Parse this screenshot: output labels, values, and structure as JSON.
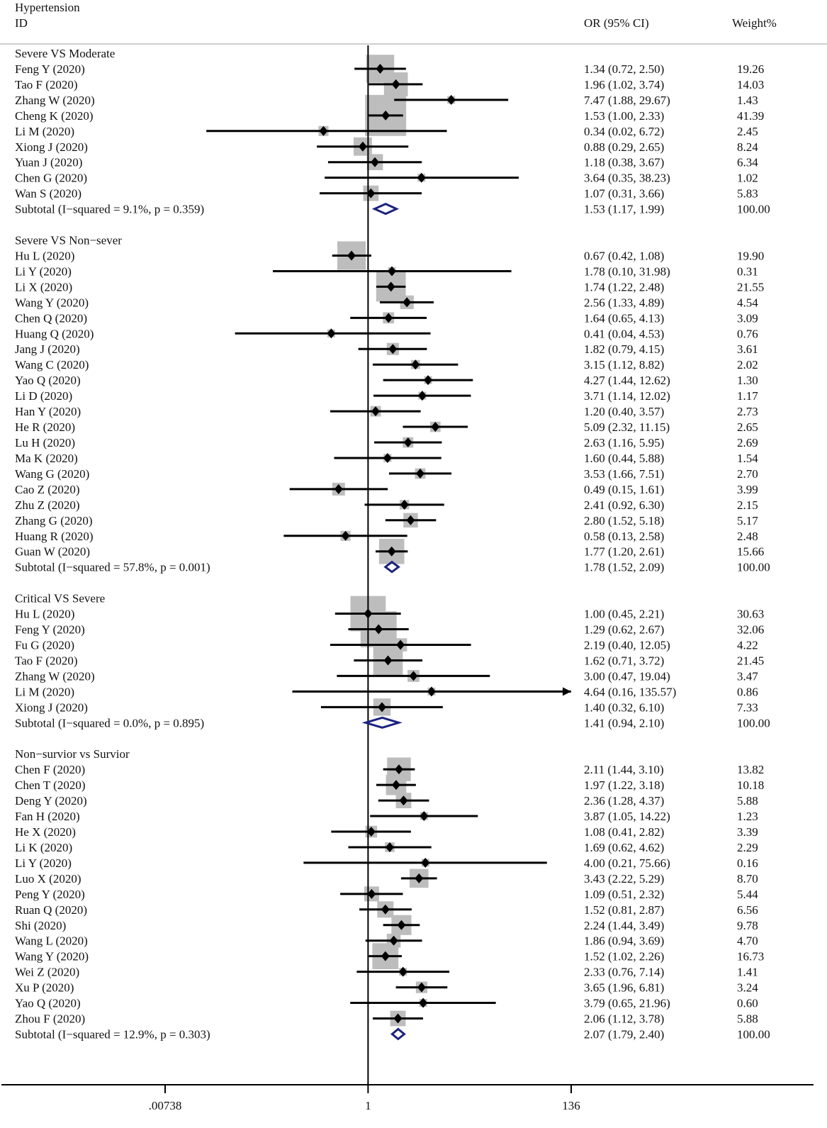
{
  "chart_data": {
    "type": "forest",
    "title": "Hypertension",
    "columns": {
      "id": "ID",
      "estimate": "OR (95% CI)",
      "weight": "Weight%"
    },
    "x_scale": "log",
    "xlim": [
      0.00738,
      136
    ],
    "x_ticks": [
      0.00738,
      1,
      136
    ],
    "x_tick_labels": [
      ".00738",
      "1",
      "136"
    ],
    "null_line": 1,
    "colors": {
      "box": "#bdbdbd",
      "point": "#000000",
      "ci": "#000000",
      "summary": "#1a237e",
      "text": "#111111"
    },
    "groups": [
      {
        "name": "Severe VS Moderate",
        "studies": [
          {
            "label": "Feng Y  (2020)",
            "or": 1.34,
            "lo": 0.72,
            "hi": 2.5,
            "text": "1.34 (0.72, 2.50)",
            "weight": "19.26"
          },
          {
            "label": "Tao F  (2020)",
            "or": 1.96,
            "lo": 1.02,
            "hi": 3.74,
            "text": "1.96 (1.02, 3.74)",
            "weight": "14.03"
          },
          {
            "label": "Zhang W  (2020)",
            "or": 7.47,
            "lo": 1.88,
            "hi": 29.67,
            "text": "7.47 (1.88, 29.67)",
            "weight": "1.43"
          },
          {
            "label": "Cheng K  (2020)",
            "or": 1.53,
            "lo": 1.0,
            "hi": 2.33,
            "text": "1.53 (1.00, 2.33)",
            "weight": "41.39"
          },
          {
            "label": "Li M  (2020)",
            "or": 0.34,
            "lo": 0.02,
            "hi": 6.72,
            "text": "0.34 (0.02, 6.72)",
            "weight": "2.45"
          },
          {
            "label": "Xiong J  (2020)",
            "or": 0.88,
            "lo": 0.29,
            "hi": 2.65,
            "text": "0.88 (0.29, 2.65)",
            "weight": "8.24"
          },
          {
            "label": "Yuan J  (2020)",
            "or": 1.18,
            "lo": 0.38,
            "hi": 3.67,
            "text": "1.18 (0.38, 3.67)",
            "weight": "6.34"
          },
          {
            "label": "Chen G  (2020)",
            "or": 3.64,
            "lo": 0.35,
            "hi": 38.23,
            "text": "3.64 (0.35, 38.23)",
            "weight": "1.02"
          },
          {
            "label": "Wan S  (2020)",
            "or": 1.07,
            "lo": 0.31,
            "hi": 3.66,
            "text": "1.07 (0.31, 3.66)",
            "weight": "5.83"
          }
        ],
        "subtotal": {
          "label": "Subtotal  (I−squared = 9.1%, p = 0.359)",
          "or": 1.53,
          "lo": 1.17,
          "hi": 1.99,
          "text": "1.53 (1.17, 1.99)",
          "weight": "100.00"
        }
      },
      {
        "name": "Severe VS Non−sever",
        "studies": [
          {
            "label": "Hu L  (2020)",
            "or": 0.67,
            "lo": 0.42,
            "hi": 1.08,
            "text": "0.67 (0.42, 1.08)",
            "weight": "19.90"
          },
          {
            "label": "Li Y  (2020)",
            "or": 1.78,
            "lo": 0.1,
            "hi": 31.98,
            "text": "1.78 (0.10, 31.98)",
            "weight": "0.31"
          },
          {
            "label": "Li X  (2020)",
            "or": 1.74,
            "lo": 1.22,
            "hi": 2.48,
            "text": "1.74 (1.22, 2.48)",
            "weight": "21.55"
          },
          {
            "label": "Wang Y  (2020)",
            "or": 2.56,
            "lo": 1.33,
            "hi": 4.89,
            "text": "2.56 (1.33, 4.89)",
            "weight": "4.54"
          },
          {
            "label": "Chen Q  (2020)",
            "or": 1.64,
            "lo": 0.65,
            "hi": 4.13,
            "text": "1.64 (0.65, 4.13)",
            "weight": "3.09"
          },
          {
            "label": "Huang Q  (2020)",
            "or": 0.41,
            "lo": 0.04,
            "hi": 4.53,
            "text": "0.41 (0.04, 4.53)",
            "weight": "0.76"
          },
          {
            "label": "Jang J  (2020)",
            "or": 1.82,
            "lo": 0.79,
            "hi": 4.15,
            "text": "1.82 (0.79, 4.15)",
            "weight": "3.61"
          },
          {
            "label": "Wang C  (2020)",
            "or": 3.15,
            "lo": 1.12,
            "hi": 8.82,
            "text": "3.15 (1.12, 8.82)",
            "weight": "2.02"
          },
          {
            "label": "Yao Q  (2020)",
            "or": 4.27,
            "lo": 1.44,
            "hi": 12.62,
            "text": "4.27 (1.44, 12.62)",
            "weight": "1.30"
          },
          {
            "label": "Li D  (2020)",
            "or": 3.71,
            "lo": 1.14,
            "hi": 12.02,
            "text": "3.71 (1.14, 12.02)",
            "weight": "1.17"
          },
          {
            "label": "Han Y  (2020)",
            "or": 1.2,
            "lo": 0.4,
            "hi": 3.57,
            "text": "1.20 (0.40, 3.57)",
            "weight": "2.73"
          },
          {
            "label": "He R  (2020)",
            "or": 5.09,
            "lo": 2.32,
            "hi": 11.15,
            "text": "5.09 (2.32, 11.15)",
            "weight": "2.65"
          },
          {
            "label": "Lu H  (2020)",
            "or": 2.63,
            "lo": 1.16,
            "hi": 5.95,
            "text": "2.63 (1.16, 5.95)",
            "weight": "2.69"
          },
          {
            "label": "Ma K  (2020)",
            "or": 1.6,
            "lo": 0.44,
            "hi": 5.88,
            "text": "1.60 (0.44, 5.88)",
            "weight": "1.54"
          },
          {
            "label": "Wang G  (2020)",
            "or": 3.53,
            "lo": 1.66,
            "hi": 7.51,
            "text": "3.53 (1.66, 7.51)",
            "weight": "2.70"
          },
          {
            "label": "Cao Z  (2020)",
            "or": 0.49,
            "lo": 0.15,
            "hi": 1.61,
            "text": "0.49 (0.15, 1.61)",
            "weight": "3.99"
          },
          {
            "label": "Zhu Z  (2020)",
            "or": 2.41,
            "lo": 0.92,
            "hi": 6.3,
            "text": "2.41 (0.92, 6.30)",
            "weight": "2.15"
          },
          {
            "label": "Zhang G  (2020)",
            "or": 2.8,
            "lo": 1.52,
            "hi": 5.18,
            "text": "2.80 (1.52, 5.18)",
            "weight": "5.17"
          },
          {
            "label": "Huang R  (2020)",
            "or": 0.58,
            "lo": 0.13,
            "hi": 2.58,
            "text": "0.58 (0.13, 2.58)",
            "weight": "2.48"
          },
          {
            "label": "Guan W  (2020)",
            "or": 1.77,
            "lo": 1.2,
            "hi": 2.61,
            "text": "1.77 (1.20, 2.61)",
            "weight": "15.66"
          }
        ],
        "subtotal": {
          "label": "Subtotal  (I−squared = 57.8%, p = 0.001)",
          "or": 1.78,
          "lo": 1.52,
          "hi": 2.09,
          "text": "1.78 (1.52, 2.09)",
          "weight": "100.00"
        }
      },
      {
        "name": "Critical VS Severe",
        "studies": [
          {
            "label": "Hu L  (2020)",
            "or": 1.0,
            "lo": 0.45,
            "hi": 2.21,
            "text": "1.00 (0.45, 2.21)",
            "weight": "30.63"
          },
          {
            "label": "Feng Y  (2020)",
            "or": 1.29,
            "lo": 0.62,
            "hi": 2.67,
            "text": "1.29 (0.62, 2.67)",
            "weight": "32.06"
          },
          {
            "label": "Fu G  (2020)",
            "or": 2.19,
            "lo": 0.4,
            "hi": 12.05,
            "text": "2.19 (0.40, 12.05)",
            "weight": "4.22"
          },
          {
            "label": "Tao F  (2020)",
            "or": 1.62,
            "lo": 0.71,
            "hi": 3.72,
            "text": "1.62 (0.71, 3.72)",
            "weight": "21.45"
          },
          {
            "label": "Zhang W  (2020)",
            "or": 3.0,
            "lo": 0.47,
            "hi": 19.04,
            "text": "3.00 (0.47, 19.04)",
            "weight": "3.47"
          },
          {
            "label": "Li M  (2020)",
            "or": 4.64,
            "lo": 0.16,
            "hi": 135.57,
            "text": "4.64 (0.16, 135.57)",
            "weight": "0.86"
          },
          {
            "label": "Xiong J  (2020)",
            "or": 1.4,
            "lo": 0.32,
            "hi": 6.1,
            "text": "1.40 (0.32, 6.10)",
            "weight": "7.33"
          }
        ],
        "subtotal": {
          "label": "Subtotal  (I−squared = 0.0%, p = 0.895)",
          "or": 1.41,
          "lo": 0.94,
          "hi": 2.1,
          "text": "1.41 (0.94, 2.10)",
          "weight": "100.00"
        }
      },
      {
        "name": "Non−survior vs Survior",
        "studies": [
          {
            "label": "Chen F  (2020)",
            "or": 2.11,
            "lo": 1.44,
            "hi": 3.1,
            "text": "2.11 (1.44, 3.10)",
            "weight": "13.82"
          },
          {
            "label": "Chen T  (2020)",
            "or": 1.97,
            "lo": 1.22,
            "hi": 3.18,
            "text": "1.97 (1.22, 3.18)",
            "weight": "10.18"
          },
          {
            "label": "Deng Y  (2020)",
            "or": 2.36,
            "lo": 1.28,
            "hi": 4.37,
            "text": "2.36 (1.28, 4.37)",
            "weight": "5.88"
          },
          {
            "label": "Fan H  (2020)",
            "or": 3.87,
            "lo": 1.05,
            "hi": 14.22,
            "text": "3.87 (1.05, 14.22)",
            "weight": "1.23"
          },
          {
            "label": "He X  (2020)",
            "or": 1.08,
            "lo": 0.41,
            "hi": 2.82,
            "text": "1.08 (0.41, 2.82)",
            "weight": "3.39"
          },
          {
            "label": "Li K  (2020)",
            "or": 1.69,
            "lo": 0.62,
            "hi": 4.62,
            "text": "1.69 (0.62, 4.62)",
            "weight": "2.29"
          },
          {
            "label": "Li Y  (2020)",
            "or": 4.0,
            "lo": 0.21,
            "hi": 75.66,
            "text": "4.00 (0.21, 75.66)",
            "weight": "0.16"
          },
          {
            "label": "Luo X  (2020)",
            "or": 3.43,
            "lo": 2.22,
            "hi": 5.29,
            "text": "3.43 (2.22, 5.29)",
            "weight": "8.70"
          },
          {
            "label": "Peng Y  (2020)",
            "or": 1.09,
            "lo": 0.51,
            "hi": 2.32,
            "text": "1.09 (0.51, 2.32)",
            "weight": "5.44"
          },
          {
            "label": "Ruan Q  (2020)",
            "or": 1.52,
            "lo": 0.81,
            "hi": 2.87,
            "text": "1.52 (0.81, 2.87)",
            "weight": "6.56"
          },
          {
            "label": "Shi  (2020)",
            "or": 2.24,
            "lo": 1.44,
            "hi": 3.49,
            "text": "2.24 (1.44, 3.49)",
            "weight": "9.78"
          },
          {
            "label": "Wang L  (2020)",
            "or": 1.86,
            "lo": 0.94,
            "hi": 3.69,
            "text": "1.86 (0.94, 3.69)",
            "weight": "4.70"
          },
          {
            "label": "Wang Y  (2020)",
            "or": 1.52,
            "lo": 1.02,
            "hi": 2.26,
            "text": "1.52 (1.02, 2.26)",
            "weight": "16.73"
          },
          {
            "label": "Wei Z  (2020)",
            "or": 2.33,
            "lo": 0.76,
            "hi": 7.14,
            "text": "2.33 (0.76, 7.14)",
            "weight": "1.41"
          },
          {
            "label": "Xu P  (2020)",
            "or": 3.65,
            "lo": 1.96,
            "hi": 6.81,
            "text": "3.65 (1.96, 6.81)",
            "weight": "3.24"
          },
          {
            "label": "Yao Q  (2020)",
            "or": 3.79,
            "lo": 0.65,
            "hi": 21.96,
            "text": "3.79 (0.65, 21.96)",
            "weight": "0.60"
          },
          {
            "label": "Zhou F  (2020)",
            "or": 2.06,
            "lo": 1.12,
            "hi": 3.78,
            "text": "2.06 (1.12, 3.78)",
            "weight": "5.88"
          }
        ],
        "subtotal": {
          "label": "Subtotal  (I−squared = 12.9%, p = 0.303)",
          "or": 2.07,
          "lo": 1.79,
          "hi": 2.4,
          "text": "2.07 (1.79, 2.40)",
          "weight": "100.00"
        }
      }
    ]
  }
}
